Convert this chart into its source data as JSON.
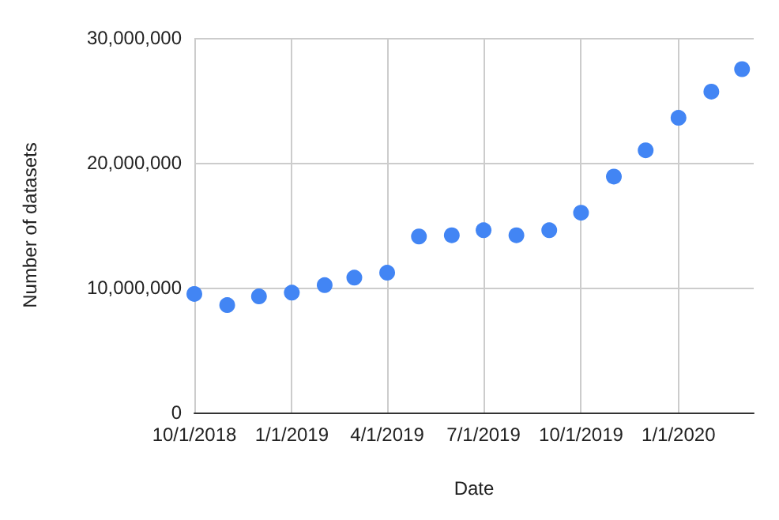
{
  "chart_data": {
    "type": "scatter",
    "xlabel": "Date",
    "ylabel": "Number of datasets",
    "x": [
      "2018-10-01",
      "2018-11-01",
      "2018-12-01",
      "2019-01-01",
      "2019-02-01",
      "2019-03-01",
      "2019-04-01",
      "2019-05-01",
      "2019-06-01",
      "2019-07-01",
      "2019-08-01",
      "2019-09-01",
      "2019-10-01",
      "2019-11-01",
      "2019-12-01",
      "2020-01-01",
      "2020-02-01",
      "2020-03-01"
    ],
    "series": [
      {
        "color": "#4285f4",
        "values": [
          9500000,
          8600000,
          9300000,
          9600000,
          10200000,
          10800000,
          11200000,
          14100000,
          14200000,
          14600000,
          14200000,
          14600000,
          16000000,
          18900000,
          21000000,
          23600000,
          25700000,
          27500000
        ]
      }
    ],
    "xlim": [
      "2018-10-01",
      "2020-03-12"
    ],
    "xticks": [
      {
        "value": "2018-10-01",
        "label": "10/1/2018"
      },
      {
        "value": "2019-01-01",
        "label": "1/1/2019"
      },
      {
        "value": "2019-04-01",
        "label": "4/1/2019"
      },
      {
        "value": "2019-07-01",
        "label": "7/1/2019"
      },
      {
        "value": "2019-10-01",
        "label": "10/1/2019"
      },
      {
        "value": "2020-01-01",
        "label": "1/1/2020"
      }
    ],
    "ylim": [
      0,
      30000000
    ],
    "yticks": [
      {
        "value": 0,
        "label": "0"
      },
      {
        "value": 10000000,
        "label": "10,000,000"
      },
      {
        "value": 20000000,
        "label": "20,000,000"
      },
      {
        "value": 30000000,
        "label": "30,000,000"
      }
    ],
    "grid": true,
    "marker": "circle"
  }
}
